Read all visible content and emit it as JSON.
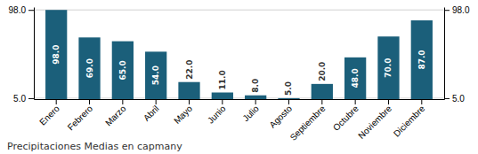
{
  "chart_data": {
    "type": "bar",
    "title": "Precipitaciones Medias en capmany",
    "categories": [
      "Enero",
      "Febrero",
      "Marzo",
      "Abril",
      "Mayo",
      "Junio",
      "Julio",
      "Agosto",
      "Septiembre",
      "Octubre",
      "Noviembre",
      "Diciembre"
    ],
    "values": [
      98.0,
      69.0,
      65.0,
      54.0,
      22.0,
      11.0,
      8.0,
      5.0,
      20.0,
      48.0,
      70.0,
      87.0
    ],
    "value_labels": [
      "98.0",
      "69.0",
      "65.0",
      "54.0",
      "22.0",
      "11.0",
      "8.0",
      "5.0",
      "20.0",
      "48.0",
      "70.0",
      "87.0"
    ],
    "data_labels": true,
    "color": "#1b5f7a",
    "ylim": [
      4.0,
      101.0
    ],
    "yticks": [
      {
        "value": 5.0,
        "label": "5.0"
      },
      {
        "value": 98.0,
        "label": "98.0"
      }
    ],
    "y2lim": [
      4.0,
      101.0
    ],
    "y2ticks": [
      {
        "value": 5.0,
        "label": "5.0"
      },
      {
        "value": 98.0,
        "label": "98.0"
      }
    ],
    "grid": true
  }
}
